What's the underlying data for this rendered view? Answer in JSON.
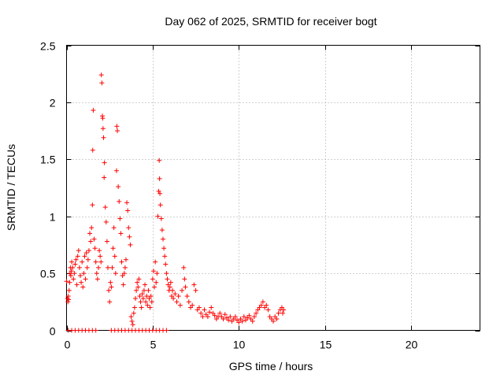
{
  "chart_data": {
    "type": "scatter",
    "title": "Day 062 of 2025, SRMTID for receiver bogt",
    "xlabel": "GPS time / hours",
    "ylabel": "SRMTID / TECUs",
    "xlim": [
      0,
      24
    ],
    "ylim": [
      0,
      2.5
    ],
    "xticks": [
      0,
      5,
      10,
      15,
      20
    ],
    "yticks": [
      0,
      0.5,
      1,
      1.5,
      2,
      2.5
    ],
    "xtick_labels": [
      "0",
      "5",
      "10",
      "15",
      "20"
    ],
    "ytick_labels": [
      "0",
      "0.5",
      "1",
      "1.5",
      "2",
      "2.5"
    ],
    "grid": true,
    "marker": "+",
    "color": "#ff0000",
    "series": [
      {
        "name": "bogt",
        "points": [
          [
            0.0,
            0.43
          ],
          [
            0.05,
            0.28
          ],
          [
            0.08,
            0.25
          ],
          [
            0.1,
            0.3
          ],
          [
            0.12,
            0.27
          ],
          [
            0.15,
            0.35
          ],
          [
            0.18,
            0.42
          ],
          [
            0.2,
            0.5
          ],
          [
            0.22,
            0.55
          ],
          [
            0.25,
            0.48
          ],
          [
            0.28,
            0.52
          ],
          [
            0.3,
            0.6
          ],
          [
            0.35,
            0.55
          ],
          [
            0.4,
            0.45
          ],
          [
            0.45,
            0.5
          ],
          [
            0.5,
            0.58
          ],
          [
            0.55,
            0.62
          ],
          [
            0.6,
            0.4
          ],
          [
            0.65,
            0.65
          ],
          [
            0.7,
            0.7
          ],
          [
            0.75,
            0.55
          ],
          [
            0.8,
            0.48
          ],
          [
            0.85,
            0.42
          ],
          [
            0.9,
            0.6
          ],
          [
            0.95,
            0.38
          ],
          [
            1.0,
            0.5
          ],
          [
            1.05,
            0.65
          ],
          [
            1.1,
            0.45
          ],
          [
            1.15,
            0.68
          ],
          [
            1.2,
            0.55
          ],
          [
            1.25,
            0.62
          ],
          [
            1.3,
            0.7
          ],
          [
            1.35,
            0.85
          ],
          [
            1.4,
            0.78
          ],
          [
            1.45,
            0.9
          ],
          [
            1.5,
            1.1
          ],
          [
            1.52,
            1.58
          ],
          [
            1.55,
            1.93
          ],
          [
            1.6,
            0.8
          ],
          [
            1.65,
            0.72
          ],
          [
            1.7,
            0.6
          ],
          [
            1.75,
            0.5
          ],
          [
            1.8,
            0.45
          ],
          [
            1.85,
            0.55
          ],
          [
            1.9,
            0.7
          ],
          [
            1.95,
            0.65
          ],
          [
            2.0,
            0.6
          ],
          [
            2.02,
            2.24
          ],
          [
            2.05,
            2.17
          ],
          [
            2.08,
            1.88
          ],
          [
            2.1,
            1.86
          ],
          [
            2.12,
            1.77
          ],
          [
            2.15,
            1.69
          ],
          [
            2.18,
            1.34
          ],
          [
            2.2,
            1.47
          ],
          [
            2.25,
            1.08
          ],
          [
            2.3,
            0.95
          ],
          [
            2.35,
            0.78
          ],
          [
            2.4,
            0.55
          ],
          [
            2.45,
            0.35
          ],
          [
            2.5,
            0.25
          ],
          [
            2.55,
            0.42
          ],
          [
            2.6,
            0.38
          ],
          [
            2.65,
            0.55
          ],
          [
            2.7,
            0.72
          ],
          [
            2.75,
            0.9
          ],
          [
            2.8,
            0.65
          ],
          [
            2.85,
            0.5
          ],
          [
            2.9,
            1.4
          ],
          [
            2.92,
            1.79
          ],
          [
            2.95,
            1.75
          ],
          [
            3.0,
            1.26
          ],
          [
            3.05,
            1.13
          ],
          [
            3.1,
            0.98
          ],
          [
            3.15,
            0.85
          ],
          [
            3.2,
            0.6
          ],
          [
            3.25,
            0.48
          ],
          [
            3.3,
            0.4
          ],
          [
            3.35,
            0.5
          ],
          [
            3.4,
            0.55
          ],
          [
            3.45,
            0.62
          ],
          [
            3.5,
            1.12
          ],
          [
            3.55,
            1.05
          ],
          [
            3.6,
            0.9
          ],
          [
            3.65,
            0.82
          ],
          [
            3.7,
            0.75
          ],
          [
            3.75,
            0.12
          ],
          [
            3.8,
            0.08
          ],
          [
            3.85,
            0.05
          ],
          [
            3.9,
            0.15
          ],
          [
            3.95,
            0.2
          ],
          [
            4.0,
            0.28
          ],
          [
            4.05,
            0.35
          ],
          [
            4.1,
            0.42
          ],
          [
            4.15,
            0.38
          ],
          [
            4.2,
            0.45
          ],
          [
            4.25,
            0.3
          ],
          [
            4.3,
            0.25
          ],
          [
            4.35,
            0.2
          ],
          [
            4.4,
            0.32
          ],
          [
            4.45,
            0.28
          ],
          [
            4.5,
            0.35
          ],
          [
            4.55,
            0.4
          ],
          [
            4.6,
            0.25
          ],
          [
            4.65,
            0.3
          ],
          [
            4.7,
            0.22
          ],
          [
            4.75,
            0.35
          ],
          [
            4.8,
            0.28
          ],
          [
            4.85,
            0.2
          ],
          [
            4.9,
            0.3
          ],
          [
            4.95,
            0.25
          ],
          [
            5.0,
            0.45
          ],
          [
            5.05,
            0.52
          ],
          [
            5.1,
            0.38
          ],
          [
            5.15,
            0.6
          ],
          [
            5.2,
            0.42
          ],
          [
            5.25,
            0.5
          ],
          [
            5.3,
            1.0
          ],
          [
            5.35,
            1.22
          ],
          [
            5.38,
            1.49
          ],
          [
            5.4,
            1.33
          ],
          [
            5.42,
            1.2
          ],
          [
            5.45,
            1.1
          ],
          [
            5.5,
            0.98
          ],
          [
            5.55,
            0.88
          ],
          [
            5.6,
            0.8
          ],
          [
            5.65,
            0.72
          ],
          [
            5.7,
            0.65
          ],
          [
            5.75,
            0.58
          ],
          [
            5.8,
            0.5
          ],
          [
            5.85,
            0.45
          ],
          [
            5.9,
            0.4
          ],
          [
            5.95,
            0.35
          ],
          [
            6.0,
            0.38
          ],
          [
            6.05,
            0.42
          ],
          [
            6.1,
            0.3
          ],
          [
            6.15,
            0.35
          ],
          [
            6.2,
            0.28
          ],
          [
            6.3,
            0.32
          ],
          [
            6.4,
            0.25
          ],
          [
            6.5,
            0.3
          ],
          [
            6.6,
            0.22
          ],
          [
            6.7,
            0.35
          ],
          [
            6.8,
            0.55
          ],
          [
            6.85,
            0.45
          ],
          [
            6.9,
            0.38
          ],
          [
            7.0,
            0.3
          ],
          [
            7.1,
            0.25
          ],
          [
            7.2,
            0.2
          ],
          [
            7.3,
            0.22
          ],
          [
            7.4,
            0.4
          ],
          [
            7.5,
            0.35
          ],
          [
            7.6,
            0.18
          ],
          [
            7.7,
            0.2
          ],
          [
            7.8,
            0.15
          ],
          [
            7.9,
            0.12
          ],
          [
            8.0,
            0.18
          ],
          [
            8.1,
            0.14
          ],
          [
            8.2,
            0.12
          ],
          [
            8.3,
            0.16
          ],
          [
            8.4,
            0.2
          ],
          [
            8.5,
            0.15
          ],
          [
            8.6,
            0.13
          ],
          [
            8.7,
            0.1
          ],
          [
            8.8,
            0.12
          ],
          [
            8.9,
            0.15
          ],
          [
            9.0,
            0.12
          ],
          [
            9.1,
            0.1
          ],
          [
            9.2,
            0.14
          ],
          [
            9.3,
            0.11
          ],
          [
            9.4,
            0.09
          ],
          [
            9.5,
            0.12
          ],
          [
            9.6,
            0.08
          ],
          [
            9.7,
            0.1
          ],
          [
            9.8,
            0.12
          ],
          [
            9.9,
            0.09
          ],
          [
            10.0,
            0.07
          ],
          [
            10.1,
            0.1
          ],
          [
            10.2,
            0.08
          ],
          [
            10.3,
            0.12
          ],
          [
            10.4,
            0.09
          ],
          [
            10.5,
            0.11
          ],
          [
            10.6,
            0.13
          ],
          [
            10.7,
            0.1
          ],
          [
            10.8,
            0.08
          ],
          [
            10.9,
            0.12
          ],
          [
            11.0,
            0.15
          ],
          [
            11.1,
            0.18
          ],
          [
            11.2,
            0.2
          ],
          [
            11.3,
            0.22
          ],
          [
            11.4,
            0.25
          ],
          [
            11.5,
            0.2
          ],
          [
            11.6,
            0.22
          ],
          [
            11.7,
            0.18
          ],
          [
            11.8,
            0.12
          ],
          [
            11.9,
            0.1
          ],
          [
            12.0,
            0.08
          ],
          [
            12.1,
            0.12
          ],
          [
            12.2,
            0.1
          ],
          [
            12.3,
            0.15
          ],
          [
            12.4,
            0.18
          ],
          [
            12.5,
            0.2
          ],
          [
            12.55,
            0.15
          ],
          [
            12.6,
            0.18
          ],
          [
            0.1,
            0.0
          ],
          [
            0.3,
            0.0
          ],
          [
            0.5,
            0.0
          ],
          [
            0.7,
            0.0
          ],
          [
            0.9,
            0.0
          ],
          [
            1.1,
            0.0
          ],
          [
            1.3,
            0.0
          ],
          [
            1.5,
            0.0
          ],
          [
            1.7,
            0.0
          ],
          [
            2.6,
            0.0
          ],
          [
            2.8,
            0.0
          ],
          [
            3.0,
            0.0
          ],
          [
            3.2,
            0.0
          ],
          [
            3.4,
            0.0
          ],
          [
            3.6,
            0.0
          ],
          [
            3.8,
            0.0
          ],
          [
            4.0,
            0.0
          ],
          [
            4.2,
            0.0
          ],
          [
            4.4,
            0.0
          ],
          [
            4.6,
            0.0
          ],
          [
            4.8,
            0.0
          ],
          [
            5.0,
            0.0
          ],
          [
            5.2,
            0.0
          ],
          [
            5.4,
            0.0
          ],
          [
            5.6,
            0.0
          ],
          [
            5.8,
            0.0
          ]
        ]
      }
    ]
  }
}
